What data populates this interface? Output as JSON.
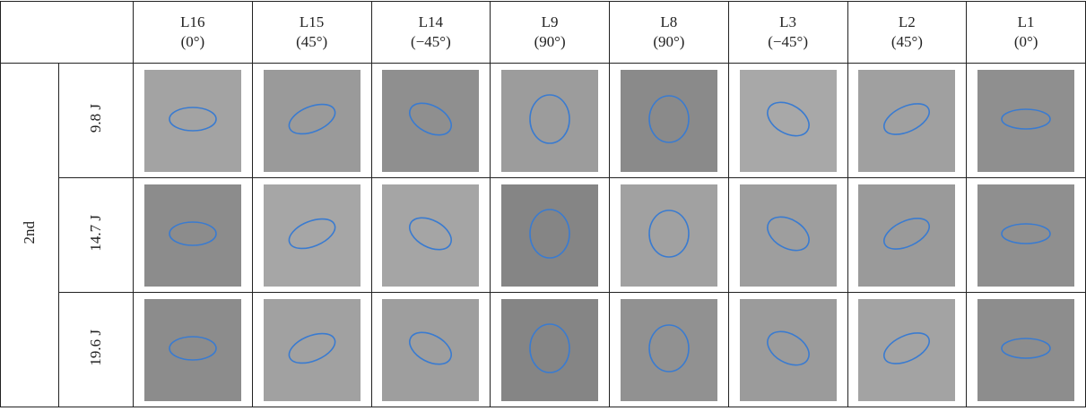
{
  "table": {
    "columns": [
      {
        "layer": "L16",
        "angle": "(0°)"
      },
      {
        "layer": "L15",
        "angle": "(45°)"
      },
      {
        "layer": "L14",
        "angle": "(−45°)"
      },
      {
        "layer": "L9",
        "angle": "(90°)"
      },
      {
        "layer": "L8",
        "angle": "(90°)"
      },
      {
        "layer": "L3",
        "angle": "(−45°)"
      },
      {
        "layer": "L2",
        "angle": "(45°)"
      },
      {
        "layer": "L1",
        "angle": "(0°)"
      }
    ],
    "group": "2nd",
    "rows": [
      {
        "energy": "9.8 J"
      },
      {
        "energy": "14.7 J"
      },
      {
        "energy": "19.6 J"
      }
    ]
  }
}
